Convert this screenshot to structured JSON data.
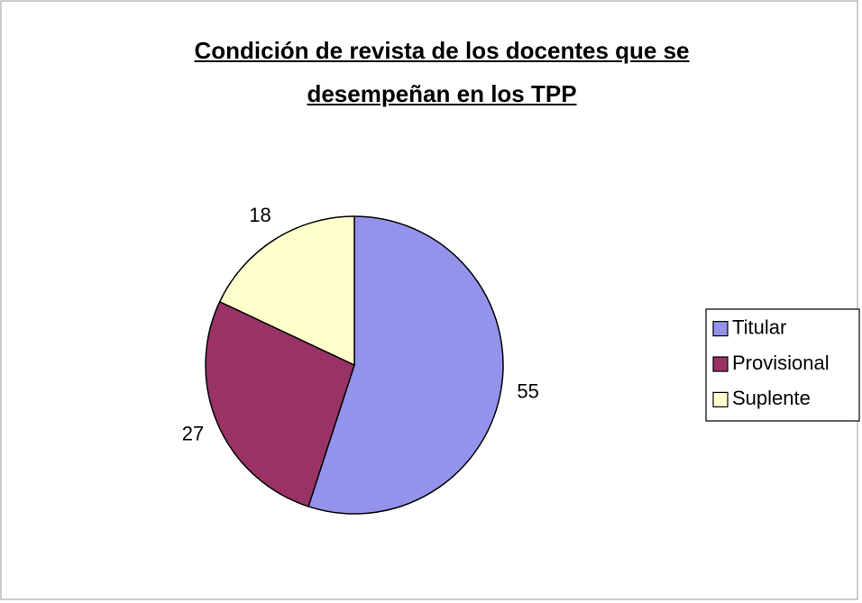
{
  "chart_data": {
    "type": "pie",
    "title": "Condición de revista de los docentes que se desempeñan en los TPP",
    "categories": [
      "Titular",
      "Provisional",
      "Suplente"
    ],
    "values": [
      55,
      27,
      18
    ],
    "colors": [
      "#9393ec",
      "#993366",
      "#ffffcc"
    ],
    "legend": "right"
  }
}
